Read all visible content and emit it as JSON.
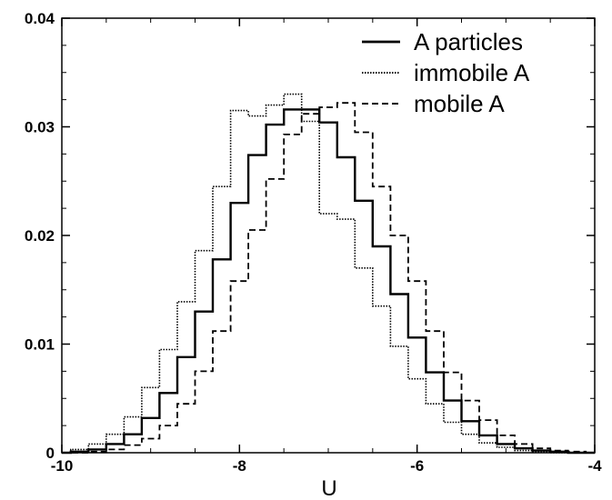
{
  "chart_data": {
    "type": "line",
    "title": "",
    "xlabel": "U",
    "ylabel": "",
    "xlim": [
      -10,
      -4
    ],
    "ylim": [
      0,
      0.04
    ],
    "x_ticks": [
      -10,
      -8,
      -6,
      -4
    ],
    "x_tick_labels": [
      "-10",
      "-8",
      "-6",
      "-4"
    ],
    "y_ticks": [
      0,
      0.01,
      0.02,
      0.03,
      0.04
    ],
    "y_tick_labels": [
      "0",
      "0.01",
      "0.02",
      "0.03",
      "0.04"
    ],
    "grid": false,
    "legend_position": "top-right",
    "series": [
      {
        "name": "A particles",
        "style": "solid",
        "x": [
          -10.0,
          -9.8,
          -9.6,
          -9.4,
          -9.2,
          -9.0,
          -8.8,
          -8.6,
          -8.4,
          -8.2,
          -8.0,
          -7.8,
          -7.6,
          -7.4,
          -7.2,
          -7.0,
          -6.8,
          -6.6,
          -6.4,
          -6.2,
          -6.0,
          -5.8,
          -5.6,
          -5.4,
          -5.2,
          -5.0,
          -4.8,
          -4.6,
          -4.4,
          -4.2,
          -4.0
        ],
        "y": [
          0.0,
          0.0001,
          0.0003,
          0.0008,
          0.0017,
          0.0032,
          0.0055,
          0.0088,
          0.013,
          0.0178,
          0.023,
          0.0274,
          0.0302,
          0.0316,
          0.0316,
          0.0304,
          0.0272,
          0.0232,
          0.019,
          0.0146,
          0.0106,
          0.0074,
          0.0048,
          0.0029,
          0.0016,
          0.0008,
          0.0004,
          0.0002,
          0.0001,
          0.0,
          0.0
        ]
      },
      {
        "name": "immobile A",
        "style": "dotted",
        "x": [
          -10.0,
          -9.8,
          -9.6,
          -9.4,
          -9.2,
          -9.0,
          -8.8,
          -8.6,
          -8.4,
          -8.2,
          -8.0,
          -7.8,
          -7.6,
          -7.4,
          -7.2,
          -7.0,
          -6.8,
          -6.6,
          -6.4,
          -6.2,
          -6.0,
          -5.8,
          -5.6,
          -5.4,
          -5.2,
          -5.0,
          -4.8,
          -4.6,
          -4.4,
          -4.2,
          -4.0
        ],
        "y": [
          0.0,
          0.0003,
          0.0008,
          0.0017,
          0.0033,
          0.006,
          0.0095,
          0.0139,
          0.0186,
          0.0245,
          0.0315,
          0.031,
          0.032,
          0.033,
          0.0305,
          0.022,
          0.0215,
          0.017,
          0.0135,
          0.0098,
          0.0068,
          0.0045,
          0.0028,
          0.0017,
          0.0009,
          0.0005,
          0.0002,
          0.0001,
          0.0,
          0.0,
          0.0
        ]
      },
      {
        "name": "mobile A",
        "style": "dashed",
        "x": [
          -10.0,
          -9.8,
          -9.6,
          -9.4,
          -9.2,
          -9.0,
          -8.8,
          -8.6,
          -8.4,
          -8.2,
          -8.0,
          -7.8,
          -7.6,
          -7.4,
          -7.2,
          -7.0,
          -6.8,
          -6.6,
          -6.4,
          -6.2,
          -6.0,
          -5.8,
          -5.6,
          -5.4,
          -5.2,
          -5.0,
          -4.8,
          -4.6,
          -4.4,
          -4.2,
          -4.0
        ],
        "y": [
          0.0,
          0.0,
          0.0001,
          0.0003,
          0.0007,
          0.0013,
          0.0025,
          0.0045,
          0.0075,
          0.0112,
          0.0158,
          0.0205,
          0.0252,
          0.0293,
          0.0312,
          0.0318,
          0.0322,
          0.0295,
          0.0245,
          0.02,
          0.0158,
          0.0112,
          0.0074,
          0.0048,
          0.003,
          0.0016,
          0.0008,
          0.0004,
          0.0002,
          0.0001,
          0.0
        ]
      }
    ]
  }
}
